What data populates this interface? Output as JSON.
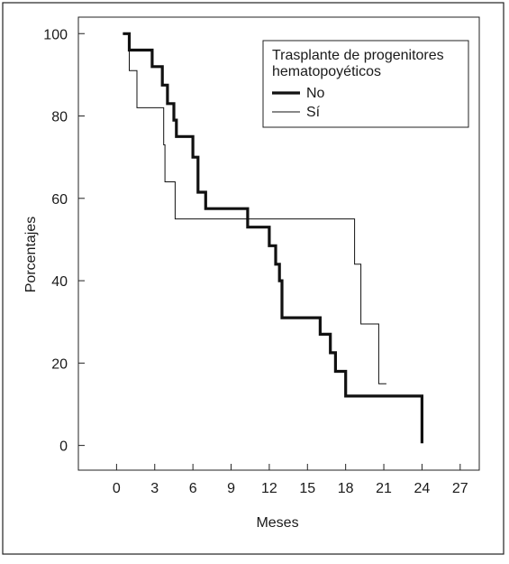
{
  "chart_data": {
    "type": "line",
    "subtype": "step",
    "xlabel": "Meses",
    "ylabel": "Porcentajes",
    "xlim": [
      -3,
      28.5
    ],
    "ylim": [
      -6,
      104
    ],
    "xticks": [
      0,
      3,
      6,
      9,
      12,
      15,
      18,
      21,
      24,
      27
    ],
    "yticks": [
      0,
      20,
      40,
      60,
      80,
      100
    ],
    "grid": false,
    "legend": {
      "title": "Trasplante de progenitores hematopoyéticos",
      "title_lines": [
        "Trasplante de progenitores",
        "hematopoyéticos"
      ],
      "placement": "top-right"
    },
    "series": [
      {
        "name": "No",
        "line": "thick",
        "points": [
          [
            0.5,
            100
          ],
          [
            1.0,
            100
          ],
          [
            1.0,
            96
          ],
          [
            2.8,
            96
          ],
          [
            2.8,
            92
          ],
          [
            3.6,
            92
          ],
          [
            3.6,
            87.5
          ],
          [
            4.0,
            87.5
          ],
          [
            4.0,
            83
          ],
          [
            4.5,
            83
          ],
          [
            4.5,
            79
          ],
          [
            4.7,
            79
          ],
          [
            4.7,
            75
          ],
          [
            6.0,
            75
          ],
          [
            6.0,
            70
          ],
          [
            6.4,
            70
          ],
          [
            6.4,
            61.5
          ],
          [
            7.0,
            61.5
          ],
          [
            7.0,
            57.5
          ],
          [
            10.3,
            57.5
          ],
          [
            10.3,
            53
          ],
          [
            12.0,
            53
          ],
          [
            12.0,
            48.5
          ],
          [
            12.5,
            48.5
          ],
          [
            12.5,
            44
          ],
          [
            12.8,
            44
          ],
          [
            12.8,
            40
          ],
          [
            13.0,
            40
          ],
          [
            13.0,
            31
          ],
          [
            16.0,
            31
          ],
          [
            16.0,
            27
          ],
          [
            16.8,
            27
          ],
          [
            16.8,
            22.5
          ],
          [
            17.2,
            22.5
          ],
          [
            17.2,
            18
          ],
          [
            18.0,
            18
          ],
          [
            18.0,
            12
          ],
          [
            24.0,
            12
          ],
          [
            24.0,
            0.5
          ]
        ]
      },
      {
        "name": "Sí",
        "line": "thin",
        "points": [
          [
            0.5,
            100
          ],
          [
            1.0,
            100
          ],
          [
            1.0,
            91
          ],
          [
            1.6,
            91
          ],
          [
            1.6,
            82
          ],
          [
            3.7,
            82
          ],
          [
            3.7,
            73
          ],
          [
            3.8,
            73
          ],
          [
            3.8,
            64
          ],
          [
            4.6,
            64
          ],
          [
            4.6,
            55
          ],
          [
            18.7,
            55
          ],
          [
            18.7,
            44
          ],
          [
            19.2,
            44
          ],
          [
            19.2,
            29.5
          ],
          [
            20.6,
            29.5
          ],
          [
            20.6,
            15
          ],
          [
            21.2,
            15
          ]
        ]
      }
    ]
  }
}
